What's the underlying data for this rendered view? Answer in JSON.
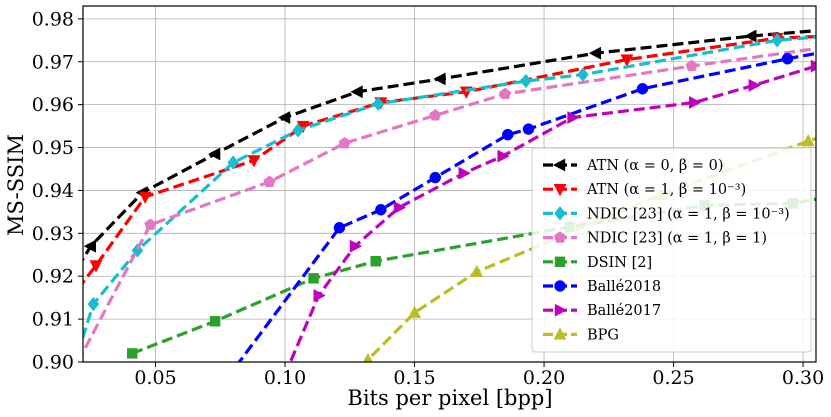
{
  "chart_data": {
    "type": "line",
    "title": "",
    "xlabel": "Bits per pixel [bpp]",
    "ylabel": "MS-SSIM",
    "xlim": [
      0.022,
      0.305
    ],
    "ylim": [
      0.9,
      0.983
    ],
    "xticks": [
      0.05,
      0.1,
      0.15,
      0.2,
      0.25,
      0.3
    ],
    "xtick_labels": [
      "0.05",
      "0.10",
      "0.15",
      "0.20",
      "0.25",
      "0.30"
    ],
    "yticks": [
      0.9,
      0.91,
      0.92,
      0.93,
      0.94,
      0.95,
      0.96,
      0.97,
      0.98
    ],
    "ytick_labels": [
      "0.90",
      "0.91",
      "0.92",
      "0.93",
      "0.94",
      "0.95",
      "0.96",
      "0.97",
      "0.98"
    ],
    "grid": true,
    "legend_position": "lower-right",
    "series": [
      {
        "name": "ATN (α = 0, β = 0)",
        "color": "#000000",
        "marker": "triangle-left",
        "x": [
          0.02,
          0.025,
          0.045,
          0.073,
          0.1,
          0.128,
          0.16,
          0.22,
          0.28,
          0.31
        ],
        "y": [
          0.922,
          0.927,
          0.9395,
          0.9485,
          0.957,
          0.963,
          0.966,
          0.972,
          0.976,
          0.9775
        ]
      },
      {
        "name": "ATN (α = 1, β = 10⁻³)",
        "color": "#ff0000",
        "marker": "triangle-down",
        "x": [
          0.02,
          0.027,
          0.046,
          0.088,
          0.107,
          0.137,
          0.17,
          0.232,
          0.29,
          0.31
        ],
        "y": [
          0.917,
          0.9225,
          0.9385,
          0.947,
          0.955,
          0.9605,
          0.963,
          0.9705,
          0.9755,
          0.976
        ]
      },
      {
        "name": "NDIC [23] (α = 1, β = 10⁻³)",
        "color": "#17becf",
        "marker": "diamond",
        "x": [
          0.02,
          0.026,
          0.043,
          0.08,
          0.105,
          0.136,
          0.193,
          0.215,
          0.29,
          0.31
        ],
        "y": [
          0.902,
          0.9135,
          0.926,
          0.9465,
          0.954,
          0.9602,
          0.9655,
          0.967,
          0.975,
          0.976
        ]
      },
      {
        "name": "NDIC [23] (α = 1, β = 1)",
        "color": "#e377c2",
        "marker": "pentagon",
        "x": [
          0.02,
          0.048,
          0.094,
          0.123,
          0.158,
          0.185,
          0.257,
          0.31
        ],
        "y": [
          0.9,
          0.932,
          0.942,
          0.951,
          0.9575,
          0.9625,
          0.969,
          0.9735
        ]
      },
      {
        "name": "DSIN [2]",
        "color": "#2ca02c",
        "marker": "square",
        "x": [
          0.041,
          0.073,
          0.111,
          0.135,
          0.21,
          0.262,
          0.296,
          0.31
        ],
        "y": [
          0.902,
          0.9095,
          0.9195,
          0.9235,
          0.9315,
          0.9365,
          0.937,
          0.9385
        ]
      },
      {
        "name": "Ballé2018",
        "color": "#0000ff",
        "marker": "circle",
        "x": [
          0.07,
          0.121,
          0.137,
          0.158,
          0.186,
          0.194,
          0.238,
          0.294,
          0.31
        ],
        "y": [
          0.89,
          0.9313,
          0.9355,
          0.943,
          0.953,
          0.9543,
          0.9637,
          0.9707,
          0.9725
        ]
      },
      {
        "name": "Ballé2017",
        "color": "#bf00bf",
        "marker": "triangle-right",
        "x": [
          0.095,
          0.113,
          0.127,
          0.144,
          0.169,
          0.184,
          0.211,
          0.258,
          0.281,
          0.305
        ],
        "y": [
          0.89,
          0.9155,
          0.927,
          0.936,
          0.944,
          0.948,
          0.957,
          0.9605,
          0.9645,
          0.969
        ]
      },
      {
        "name": "BPG",
        "color": "#bcbd22",
        "marker": "triangle-up",
        "x": [
          0.125,
          0.132,
          0.15,
          0.174,
          0.245,
          0.302,
          0.31
        ],
        "y": [
          0.896,
          0.9005,
          0.9115,
          0.921,
          0.939,
          0.9515,
          0.953
        ]
      }
    ]
  }
}
